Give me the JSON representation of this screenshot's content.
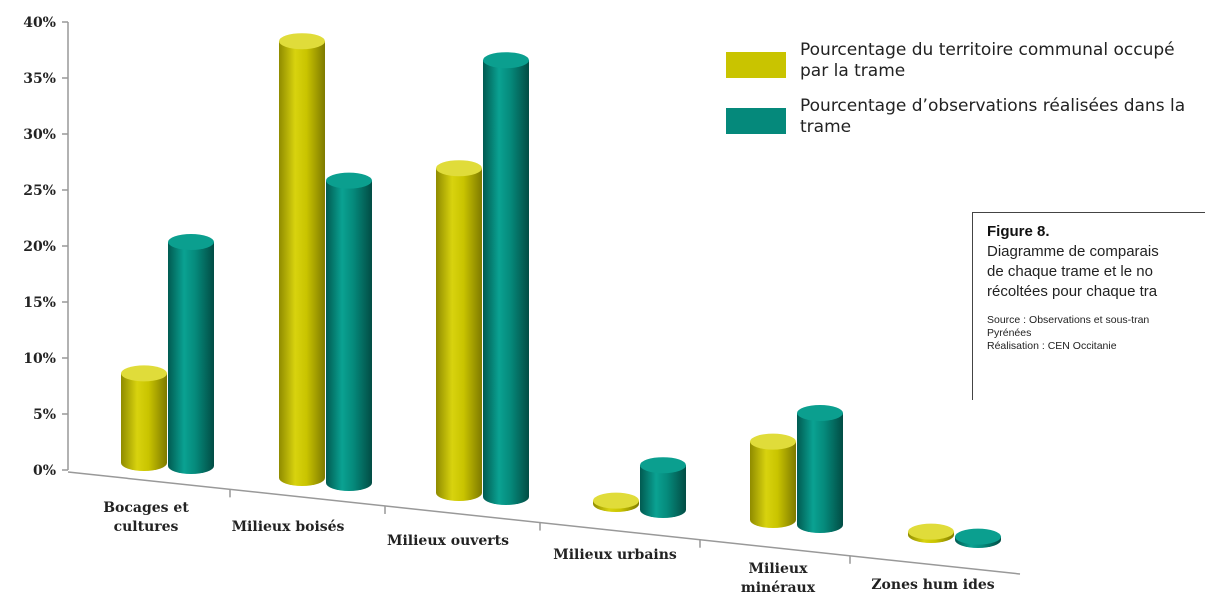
{
  "chart_data": {
    "type": "bar",
    "categories": [
      {
        "line1": "Bocages et",
        "line2": "cultures"
      },
      {
        "line1": "Milieux boisés",
        "line2": ""
      },
      {
        "line1": "Milieux ouverts",
        "line2": ""
      },
      {
        "line1": "Milieux urbains",
        "line2": ""
      },
      {
        "line1": "Milieux",
        "line2": "minéraux"
      },
      {
        "line1": "Zones hum ides",
        "line2": ""
      }
    ],
    "series": [
      {
        "name": "Pourcentage du territoire communal occupé par la trame",
        "color": "#c9c400",
        "values": [
          8,
          39,
          29,
          0.3,
          7,
          0.3
        ]
      },
      {
        "name": "Pourcentage d’observations réalisées dans la trame",
        "color": "#05897b",
        "values": [
          20,
          27,
          39,
          4,
          10,
          0.3
        ]
      }
    ],
    "yticks": [
      "0%",
      "5%",
      "10%",
      "15%",
      "20%",
      "25%",
      "30%",
      "35%",
      "40%"
    ],
    "ylim": [
      0,
      40
    ],
    "legend": {
      "item1_line1": "Pourcentage du territoire communal occupé",
      "item1_line2": "par la trame",
      "item2_line1": "Pourcentage d’observations réalisées dans la",
      "item2_line2": "trame",
      "placement": "top-right"
    }
  },
  "caption": {
    "title": "Figure 8.",
    "line1": "Diagramme de comparais",
    "line2": "de chaque trame et le no",
    "line3": "récoltées pour chaque tra",
    "source1": "Source : Observations et sous-tran",
    "source2": "Pyrénées",
    "source3": "Réalisation : CEN Occitanie"
  }
}
